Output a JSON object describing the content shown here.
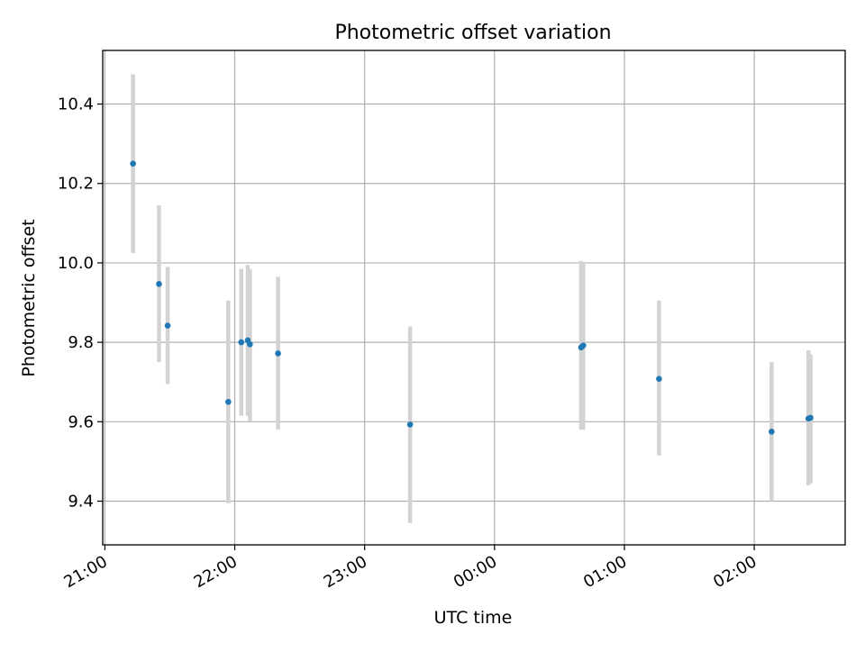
{
  "chart_data": {
    "type": "scatter",
    "title": "Photometric offset variation",
    "xlabel": "UTC time",
    "ylabel": "Photometric offset",
    "x_ticks": [
      "21:00",
      "22:00",
      "23:00",
      "00:00",
      "01:00",
      "02:00"
    ],
    "y_ticks": [
      "9.4",
      "9.6",
      "9.8",
      "10.0",
      "10.2",
      "10.4"
    ],
    "xlim": [
      "20:59",
      "02:42"
    ],
    "ylim": [
      9.29,
      10.535
    ],
    "grid": true,
    "point_color": "#1f77b4",
    "error_bar_color": "#d3d3d3",
    "points": [
      {
        "time": "21:13",
        "y": 10.25,
        "yerr_low": 10.025,
        "yerr_high": 10.475
      },
      {
        "time": "21:25",
        "y": 9.947,
        "yerr_low": 9.75,
        "yerr_high": 10.145
      },
      {
        "time": "21:29",
        "y": 9.842,
        "yerr_low": 9.695,
        "yerr_high": 9.99
      },
      {
        "time": "21:57",
        "y": 9.65,
        "yerr_low": 9.395,
        "yerr_high": 9.905
      },
      {
        "time": "22:03",
        "y": 9.8,
        "yerr_low": 9.615,
        "yerr_high": 9.985
      },
      {
        "time": "22:06",
        "y": 9.805,
        "yerr_low": 9.615,
        "yerr_high": 9.995
      },
      {
        "time": "22:07",
        "y": 9.795,
        "yerr_low": 9.6,
        "yerr_high": 9.985
      },
      {
        "time": "22:20",
        "y": 9.772,
        "yerr_low": 9.58,
        "yerr_high": 9.965
      },
      {
        "time": "23:21",
        "y": 9.593,
        "yerr_low": 9.345,
        "yerr_high": 9.84
      },
      {
        "time": "00:40",
        "y": 9.787,
        "yerr_low": 9.58,
        "yerr_high": 10.005
      },
      {
        "time": "00:41",
        "y": 9.792,
        "yerr_low": 9.58,
        "yerr_high": 10.0
      },
      {
        "time": "01:16",
        "y": 9.708,
        "yerr_low": 9.515,
        "yerr_high": 9.905
      },
      {
        "time": "02:08",
        "y": 9.575,
        "yerr_low": 9.4,
        "yerr_high": 9.75
      },
      {
        "time": "02:25",
        "y": 9.608,
        "yerr_low": 9.44,
        "yerr_high": 9.78
      },
      {
        "time": "02:26",
        "y": 9.61,
        "yerr_low": 9.445,
        "yerr_high": 9.77
      }
    ]
  }
}
